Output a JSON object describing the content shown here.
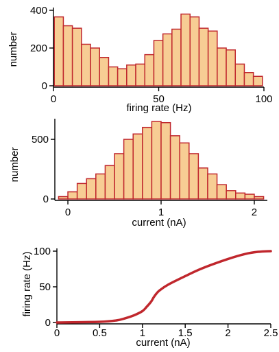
{
  "chart_data": [
    {
      "type": "bar",
      "xlabel": "firing rate (Hz)",
      "ylabel": "number",
      "xlim": [
        0,
        100
      ],
      "ylim": [
        0,
        400
      ],
      "xticks": [
        0,
        50,
        100
      ],
      "yticks": [
        0,
        200,
        400
      ],
      "bin_width": 4.3,
      "bin_starts": [
        0.4,
        4.7,
        9.0,
        13.3,
        17.6,
        21.9,
        26.2,
        30.5,
        34.8,
        39.1,
        43.4,
        47.7,
        52.0,
        56.3,
        60.6,
        64.9,
        69.2,
        73.5,
        77.8,
        82.1,
        86.4,
        90.7,
        95.0
      ],
      "values": [
        365,
        318,
        305,
        220,
        200,
        150,
        100,
        90,
        110,
        115,
        165,
        240,
        275,
        300,
        380,
        365,
        305,
        290,
        200,
        190,
        115,
        70,
        50
      ],
      "colors": {
        "fill": "#f7cd94",
        "edge": "#c0272d"
      }
    },
    {
      "type": "bar",
      "xlabel": "current (nA)",
      "ylabel": "number",
      "xlim": [
        -0.14,
        2.14
      ],
      "ylim": [
        0,
        650
      ],
      "xticks": [
        0,
        1,
        2
      ],
      "yticks": [
        0,
        500
      ],
      "bin_width": 0.1,
      "bin_starts": [
        -0.1,
        0.0,
        0.1,
        0.2,
        0.3,
        0.4,
        0.5,
        0.6,
        0.7,
        0.8,
        0.9,
        1.0,
        1.1,
        1.2,
        1.3,
        1.4,
        1.5,
        1.6,
        1.7,
        1.8,
        1.9,
        2.0
      ],
      "values": [
        20,
        60,
        130,
        170,
        210,
        280,
        380,
        500,
        545,
        600,
        650,
        640,
        530,
        470,
        380,
        260,
        210,
        120,
        70,
        50,
        40,
        20
      ],
      "colors": {
        "fill": "#f7cd94",
        "edge": "#c0272d"
      }
    },
    {
      "type": "line",
      "xlabel": "current (nA)",
      "ylabel": "firing rate (Hz)",
      "xlim": [
        0,
        2.5
      ],
      "ylim": [
        0,
        100
      ],
      "xticks": [
        "0",
        "0.5",
        "1",
        "1.5",
        "2",
        "2.5"
      ],
      "yticks": [
        "0",
        "50",
        "100"
      ],
      "x": [
        0,
        0.5,
        0.7,
        0.8,
        0.9,
        1.0,
        1.05,
        1.1,
        1.13,
        1.16,
        1.2,
        1.3,
        1.5,
        1.7,
        2.0,
        2.2,
        2.35,
        2.5
      ],
      "y": [
        0,
        1,
        3,
        6,
        10,
        16,
        22,
        29,
        35,
        40,
        45,
        53,
        65,
        76,
        89,
        96,
        99,
        100
      ],
      "colors": {
        "line": "#c0272d"
      }
    }
  ]
}
